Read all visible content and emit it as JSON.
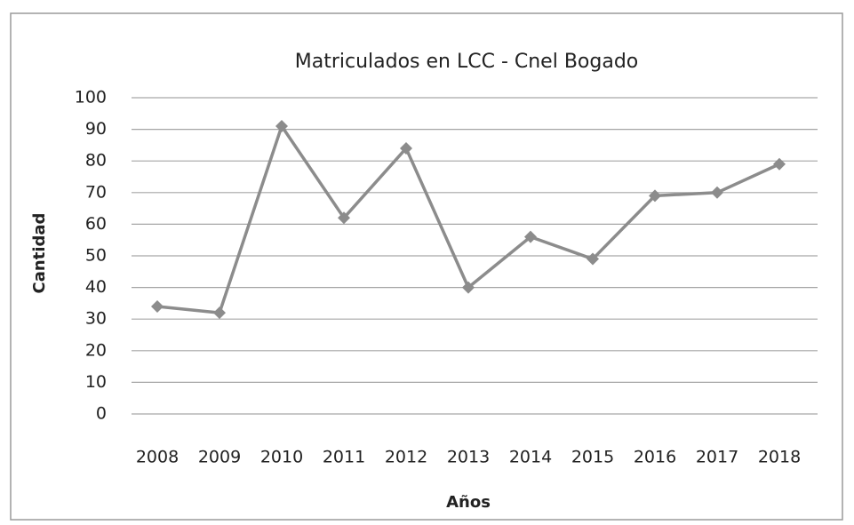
{
  "chart_data": {
    "type": "line",
    "title": "Matriculados en LCC - Cnel Bogado",
    "x_label": "Años",
    "y_label": "Cantidad",
    "categories": [
      "2008",
      "2009",
      "2010",
      "2011",
      "2012",
      "2013",
      "2014",
      "2015",
      "2016",
      "2017",
      "2018"
    ],
    "values": [
      34,
      32,
      91,
      62,
      84,
      40,
      56,
      49,
      69,
      70,
      79
    ],
    "color": "#8c8c8c",
    "ylim": [
      0,
      100
    ],
    "yticks": [
      0,
      10,
      20,
      30,
      40,
      50,
      60,
      70,
      80,
      90,
      100
    ],
    "grid": true
  }
}
